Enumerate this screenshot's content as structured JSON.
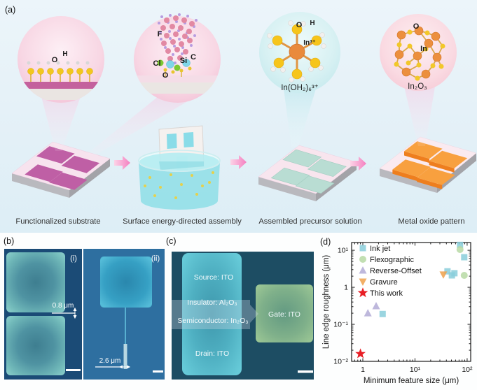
{
  "panel_a": {
    "label": "(a)",
    "insets": {
      "hydroxyl": {
        "o": "O",
        "h": "H"
      },
      "silane": {
        "f": "F",
        "c": "C",
        "si": "Si",
        "cl": "Cl",
        "o": "O"
      },
      "precursor": {
        "o": "O",
        "h": "H",
        "in": "In³⁺",
        "caption": "In(OH₂)₆³⁺"
      },
      "oxide": {
        "o": "O",
        "in": "In",
        "caption": "In₂O₃"
      }
    },
    "steps": [
      "Functionalized substrate",
      "Surface energy-directed assembly",
      "Assembled precursor solution",
      "Metal oxide pattern"
    ]
  },
  "panel_b": {
    "label": "(b)",
    "sub_i_label": "(i)",
    "sub_ii_label": "(ii)",
    "measurement_i": "0.8 μm",
    "measurement_ii": "2.6 μm"
  },
  "panel_c": {
    "label": "(c)",
    "source": "Source: ITO",
    "insulator": "Insulator: Al₂O₃",
    "semiconductor": "Semiconductor: In₂O₃",
    "drain": "Drain: ITO",
    "gate": "Gate: ITO"
  },
  "panel_d": {
    "label": "(d)"
  },
  "chart_data": {
    "type": "scatter",
    "xlabel": "Minimum feature size (μm)",
    "ylabel": "Line edge roughness (μm)",
    "x_scale": "log",
    "y_scale": "log",
    "xlim": [
      0.61,
      117
    ],
    "ylim": [
      0.01,
      16.2
    ],
    "x_ticks": [
      1,
      10,
      100
    ],
    "y_ticks": [
      0.01,
      0.1,
      1,
      10
    ],
    "x_tick_labels": [
      "1",
      "10¹",
      "10²"
    ],
    "y_tick_labels": [
      "10⁻²",
      "10⁻¹",
      "1",
      "10¹"
    ],
    "grid": false,
    "legend_position": "top-left",
    "series": [
      {
        "name": "Ink jet",
        "marker": "square",
        "color": "#89ceda",
        "points": [
          [
            2.4,
            0.19
          ],
          [
            42,
            2.7
          ],
          [
            51,
            2.1
          ],
          [
            57,
            2.4
          ],
          [
            88,
            6.5
          ],
          [
            73,
            14
          ]
        ]
      },
      {
        "name": "Flexographic",
        "marker": "circle",
        "color": "#b7d9a4",
        "points": [
          [
            73,
            10.5
          ],
          [
            88,
            2.1
          ]
        ]
      },
      {
        "name": "Reverse-Offset",
        "marker": "triangle",
        "color": "#b3abd6",
        "points": [
          [
            1.25,
            0.2
          ],
          [
            1.8,
            0.31
          ]
        ]
      },
      {
        "name": "Gravure",
        "marker": "triangle-down",
        "color": "#f0a14b",
        "points": [
          [
            35,
            2.2
          ]
        ]
      },
      {
        "name": "This work",
        "marker": "star",
        "color": "#e81e25",
        "points": [
          [
            0.9,
            0.016
          ]
        ]
      }
    ]
  }
}
